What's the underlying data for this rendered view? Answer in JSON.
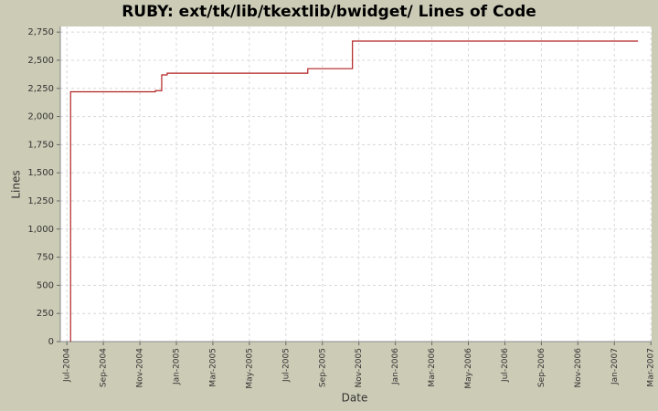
{
  "chart_data": {
    "type": "step-line",
    "title": "RUBY: ext/tk/lib/tkextlib/bwidget/ Lines of Code",
    "x_label": "Date",
    "y_label": "Lines",
    "xlim": [
      2004.47,
      2007.17
    ],
    "ylim": [
      0,
      2800
    ],
    "xticks": [
      {
        "value": 2004.5,
        "label": "Jul-2004"
      },
      {
        "value": 2004.6667,
        "label": "Sep-2004"
      },
      {
        "value": 2004.8333,
        "label": "Nov-2004"
      },
      {
        "value": 2005.0,
        "label": "Jan-2005"
      },
      {
        "value": 2005.1667,
        "label": "Mar-2005"
      },
      {
        "value": 2005.3333,
        "label": "May-2005"
      },
      {
        "value": 2005.5,
        "label": "Jul-2005"
      },
      {
        "value": 2005.6667,
        "label": "Sep-2005"
      },
      {
        "value": 2005.8333,
        "label": "Nov-2005"
      },
      {
        "value": 2006.0,
        "label": "Jan-2006"
      },
      {
        "value": 2006.1667,
        "label": "Mar-2006"
      },
      {
        "value": 2006.3333,
        "label": "May-2006"
      },
      {
        "value": 2006.5,
        "label": "Jul-2006"
      },
      {
        "value": 2006.6667,
        "label": "Sep-2006"
      },
      {
        "value": 2006.8333,
        "label": "Nov-2006"
      },
      {
        "value": 2007.0,
        "label": "Jan-2007"
      },
      {
        "value": 2007.1667,
        "label": "Mar-2007"
      }
    ],
    "yticks": [
      0,
      250,
      500,
      750,
      {
        "value": 1000,
        "label": "1,000"
      },
      {
        "value": 1250,
        "label": "1,250"
      },
      {
        "value": 1500,
        "label": "1,500"
      },
      {
        "value": 1750,
        "label": "1,750"
      },
      {
        "value": 2000,
        "label": "2,000"
      },
      {
        "value": 2250,
        "label": "2,250"
      },
      {
        "value": 2500,
        "label": "2,500"
      },
      {
        "value": 2750,
        "label": "2,750"
      }
    ],
    "grid": true,
    "series": [
      {
        "name": "Lines",
        "color": "#b22222",
        "x": [
          2004.517,
          2004.517,
          2004.904,
          2004.933,
          2004.958,
          2005.6,
          2005.804,
          2007.108
        ],
        "values": [
          0,
          2220,
          2230,
          2370,
          2385,
          2425,
          2670,
          2670
        ]
      }
    ]
  }
}
